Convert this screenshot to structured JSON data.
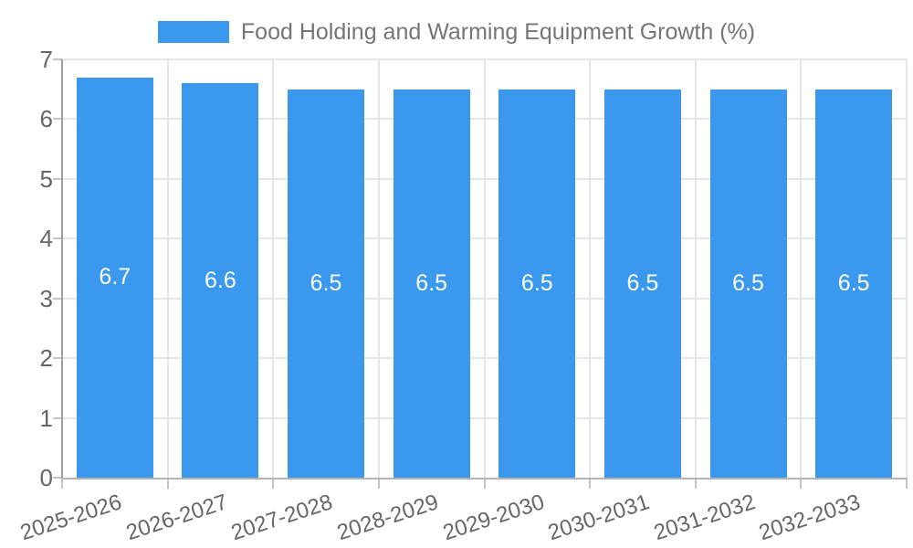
{
  "chart_data": {
    "type": "bar",
    "categories": [
      "2025-2026",
      "2026-2027",
      "2027-2028",
      "2028-2029",
      "2029-2030",
      "2030-2031",
      "2031-2032",
      "2032-2033"
    ],
    "values": [
      6.7,
      6.6,
      6.5,
      6.5,
      6.5,
      6.5,
      6.5,
      6.5
    ],
    "series_name": "Food Holding and Warming Equipment Growth (%)",
    "title": "",
    "xlabel": "",
    "ylabel": "",
    "ylim": [
      0,
      7
    ],
    "yticks": [
      0,
      1,
      2,
      3,
      4,
      5,
      6,
      7
    ],
    "grid": true,
    "legend_position": "top",
    "bar_labels": [
      "6.7",
      "6.6",
      "6.5",
      "6.5",
      "6.5",
      "6.5",
      "6.5",
      "6.5"
    ],
    "colors": {
      "bar": "#3a99ee",
      "bar_label": "#ffffff",
      "axis_text": "#666666",
      "legend_text": "#757575",
      "grid": "#e6e6e6",
      "x_axis_line": "#b3b3b3",
      "y_axis_line": "#9e9e9e",
      "tick": "#c4c4c4"
    }
  }
}
